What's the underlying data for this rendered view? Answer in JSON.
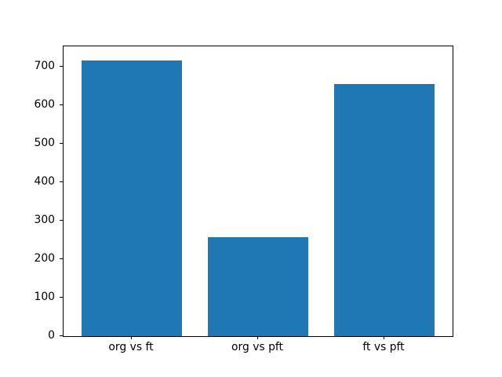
{
  "figure": {
    "background": "#ffffff",
    "axes_edge_color": "#000000",
    "tick_color": "#000000",
    "label_color": "#000000"
  },
  "chart_data": {
    "type": "bar",
    "title": "",
    "xlabel": "",
    "ylabel": "",
    "categories": [
      "org vs ft",
      "org vs pft",
      "ft vs pft"
    ],
    "values": [
      718,
      258,
      656
    ],
    "bar_color": "#1f77b4",
    "bar_width_fraction": 0.8,
    "x_margin": 0.05,
    "ylim": [
      0,
      754
    ],
    "yticks": [
      0,
      100,
      200,
      300,
      400,
      500,
      600,
      700
    ],
    "grid": false,
    "legend_position": "none"
  }
}
